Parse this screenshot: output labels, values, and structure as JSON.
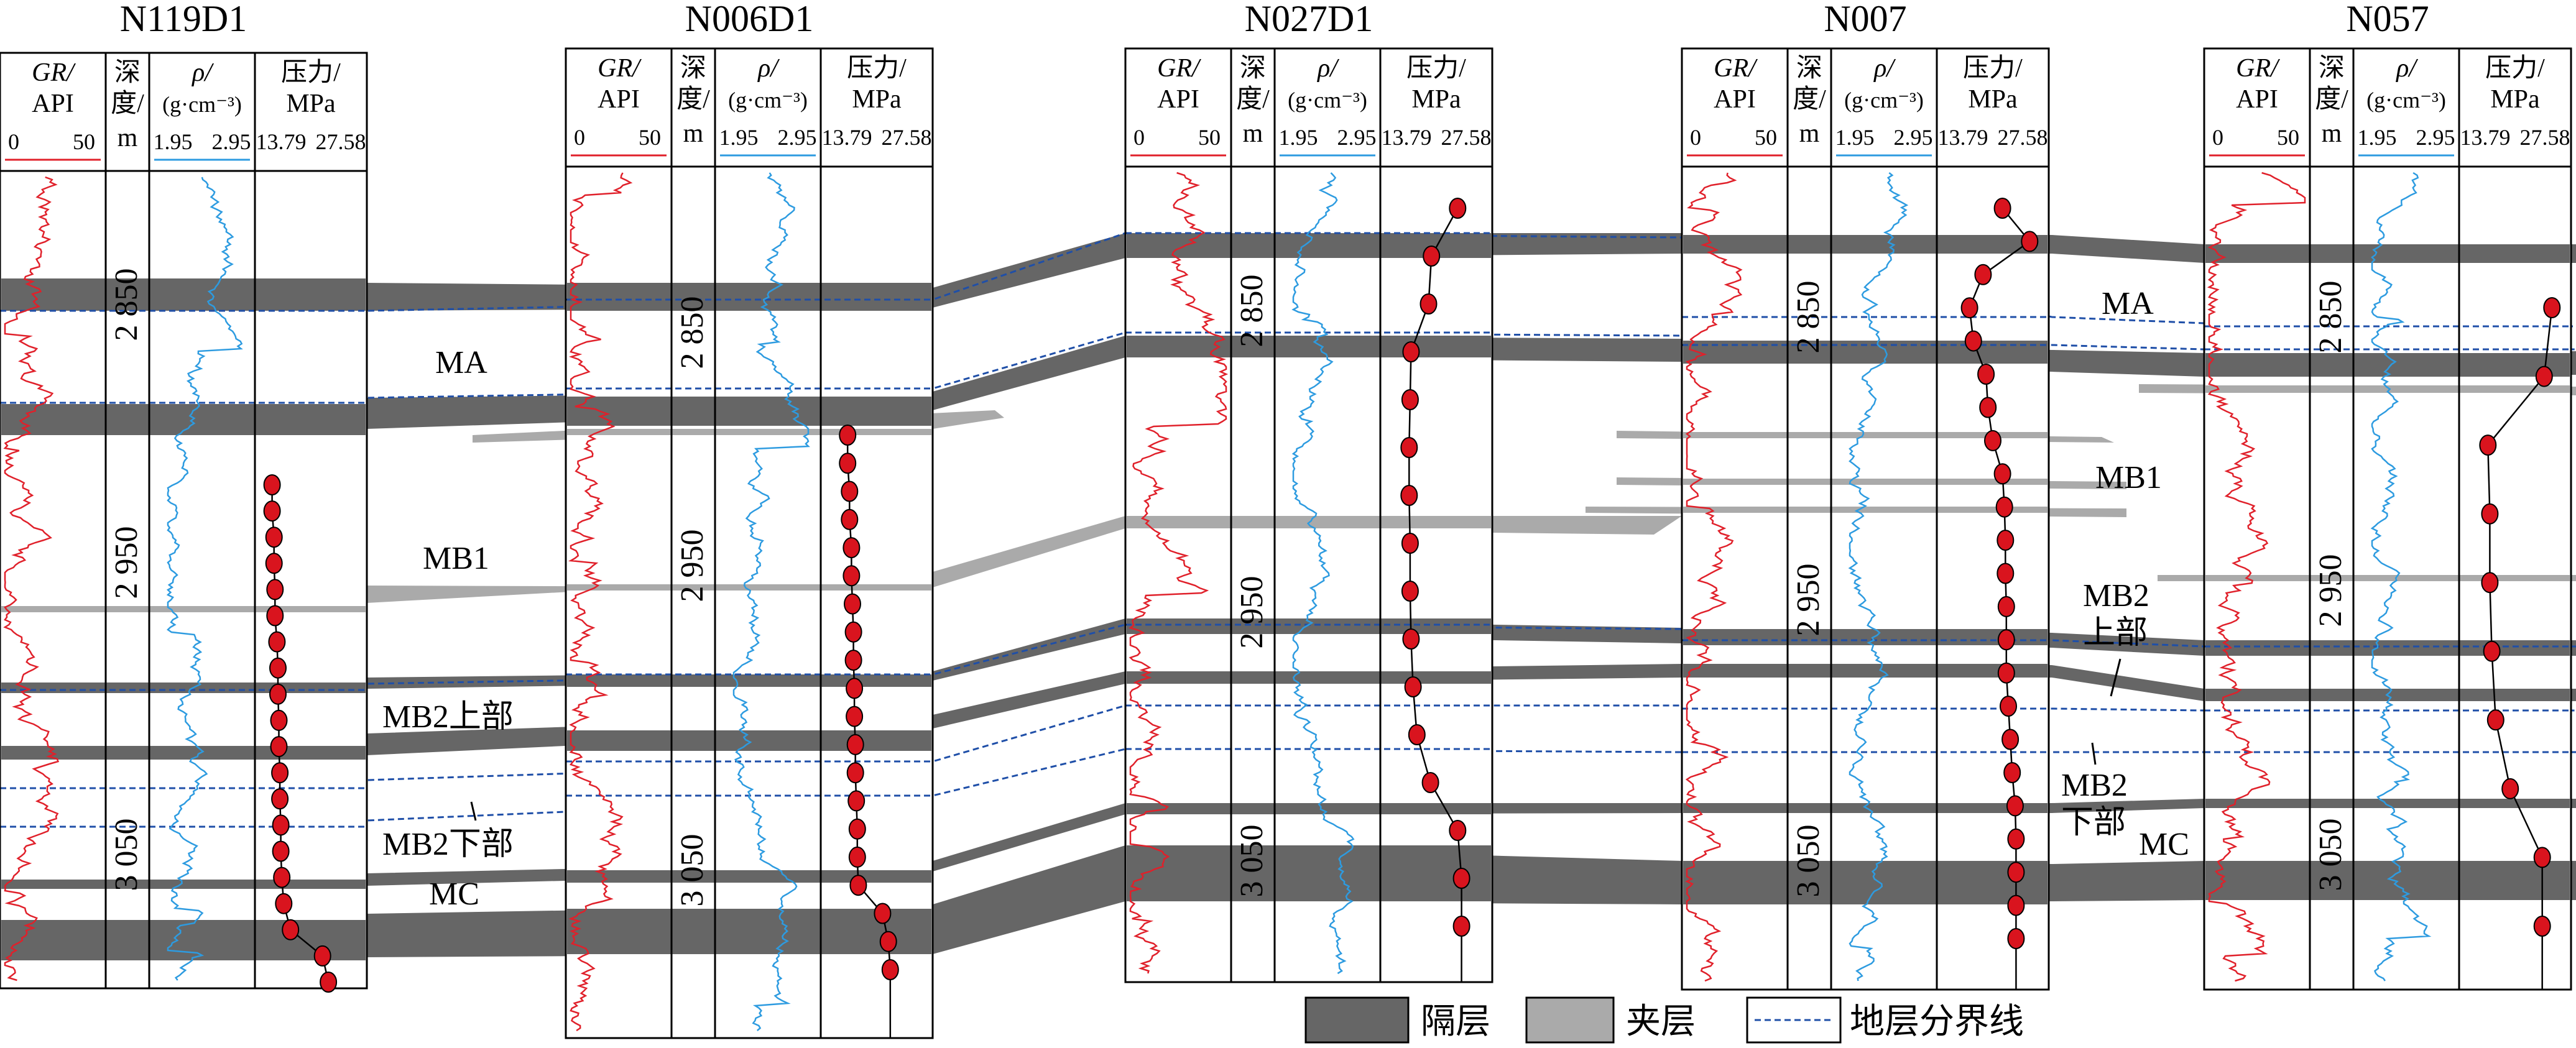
{
  "wells": [
    {
      "name": "N119D1",
      "headers": {
        "gr": "GR/",
        "gr_unit": "API",
        "depth1": "深",
        "depth2": "度/",
        "depth3": "m",
        "rho": "ρ/",
        "rho_unit": "(g·cm⁻³)",
        "p1": "压力/",
        "p2": "MPa"
      },
      "scales": {
        "gr_min": "0",
        "gr_max": "50",
        "rho_min": "1.95",
        "rho_max": "2.95",
        "p_min": "13.79",
        "p_max": "27.58"
      },
      "depth_labels": [
        "2 850",
        "2 950",
        "3 050"
      ],
      "pressure_points": [
        0.1,
        0.1,
        0.12,
        0.12,
        0.13,
        0.13,
        0.15,
        0.16,
        0.16,
        0.17,
        0.17,
        0.18,
        0.18,
        0.19,
        0.19,
        0.2,
        0.22,
        0.29,
        0.62,
        0.68
      ]
    },
    {
      "name": "N006D1",
      "headers": {
        "gr": "GR/",
        "gr_unit": "API",
        "depth1": "深",
        "depth2": "度/",
        "depth3": "m",
        "rho": "ρ/",
        "rho_unit": "(g·cm⁻³)",
        "p1": "压力/",
        "p2": "MPa"
      },
      "scales": {
        "gr_min": "0",
        "gr_max": "50",
        "rho_min": "1.95",
        "rho_max": "2.95",
        "p_min": "13.79",
        "p_max": "27.58"
      },
      "depth_labels": [
        "2 850",
        "2 950",
        "3 050"
      ],
      "pressure_points": [
        0.2,
        0.2,
        0.22,
        0.22,
        0.24,
        0.24,
        0.25,
        0.26,
        0.26,
        0.27,
        0.27,
        0.28,
        0.28,
        0.29,
        0.3,
        0.3,
        0.31,
        0.56,
        0.62,
        0.64
      ]
    },
    {
      "name": "N027D1",
      "headers": {
        "gr": "GR/",
        "gr_unit": "API",
        "depth1": "深",
        "depth2": "度/",
        "depth3": "m",
        "rho": "ρ/",
        "rho_unit": "(g·cm⁻³)",
        "p1": "压力/",
        "p2": "MPa"
      },
      "scales": {
        "gr_min": "0",
        "gr_max": "50",
        "rho_min": "1.95",
        "rho_max": "2.95",
        "p_min": "13.79",
        "p_max": "27.58"
      },
      "depth_labels": [
        "2 850",
        "2 950",
        "3 050"
      ],
      "pressure_points": [
        0.72,
        0.45,
        0.42,
        0.24,
        0.23,
        0.22,
        0.22,
        0.23,
        0.23,
        0.24,
        0.26,
        0.3,
        0.44,
        0.72,
        0.76,
        0.76
      ]
    },
    {
      "name": "N007",
      "headers": {
        "gr": "GR/",
        "gr_unit": "API",
        "depth1": "深",
        "depth2": "度/",
        "depth3": "m",
        "rho": "ρ/",
        "rho_unit": "(g·cm⁻³)",
        "p1": "压力/",
        "p2": "MPa"
      },
      "scales": {
        "gr_min": "0",
        "gr_max": "50",
        "rho_min": "1.95",
        "rho_max": "2.95",
        "p_min": "13.79",
        "p_max": "27.58"
      },
      "depth_labels": [
        "2 850",
        "2 950",
        "3 050"
      ],
      "pressure_points": [
        0.6,
        0.88,
        0.4,
        0.26,
        0.3,
        0.43,
        0.45,
        0.5,
        0.6,
        0.62,
        0.63,
        0.63,
        0.64,
        0.64,
        0.64,
        0.66,
        0.68,
        0.7,
        0.73,
        0.74,
        0.74,
        0.74,
        0.74
      ]
    },
    {
      "name": "N057",
      "headers": {
        "gr": "GR/",
        "gr_unit": "API",
        "depth1": "深",
        "depth2": "度/",
        "depth3": "m",
        "rho": "ρ/",
        "rho_unit": "(g·cm⁻³)",
        "p1": "压力/",
        "p2": "MPa"
      },
      "scales": {
        "gr_min": "0",
        "gr_max": "50",
        "rho_min": "1.95",
        "rho_max": "2.95",
        "p_min": "13.79",
        "p_max": "27.58"
      },
      "depth_labels": [
        "2 850",
        "2 950",
        "3 050"
      ],
      "pressure_points": [
        0.88,
        0.8,
        0.22,
        0.24,
        0.24,
        0.26,
        0.3,
        0.45,
        0.78,
        0.78
      ]
    }
  ],
  "zones": {
    "ma_left": "MA",
    "mb1_left": "MB1",
    "mb2u_left": "MB2上部",
    "mb2l_left": "MB2下部",
    "mc_left": "MC",
    "ma_right": "MA",
    "mb1_right": "MB1",
    "mb2u_right_1": "MB2",
    "mb2u_right_2": "上部",
    "mb2l_right_1": "MB2",
    "mb2l_right_2": "下部",
    "mc_right": "MC"
  },
  "legend": {
    "barrier": "隔层",
    "interlayer": "夹层",
    "boundary": "地层分界线"
  },
  "colors": {
    "barrier": "#666666",
    "interlayer": "#aaaaaa",
    "boundary": "#1f4fa8",
    "gr_curve": "#e0202a",
    "rho_curve": "#2d9be0",
    "pressure_point": "#d9141e"
  }
}
